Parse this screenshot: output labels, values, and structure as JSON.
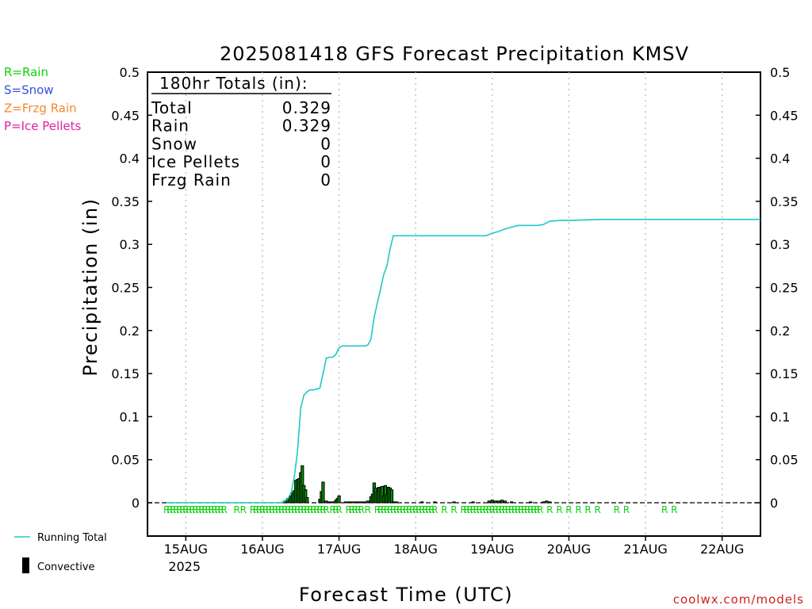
{
  "chart_data": {
    "type": "bar",
    "title": "2025081418 GFS Forecast Precipitation KMSV",
    "xlabel": "Forecast Time (UTC)",
    "ylabel": "Precipitation (in)",
    "ylim": [
      0,
      0.5
    ],
    "yticks": [
      0,
      0.05,
      0.1,
      0.15,
      0.2,
      0.25,
      0.3,
      0.35,
      0.4,
      0.45,
      0.5
    ],
    "ytick_labels": [
      "0",
      "0.05",
      "0.1",
      "0.15",
      "0.2",
      "0.25",
      "0.3",
      "0.35",
      "0.4",
      "0.45",
      "0.5"
    ],
    "x_unit": "forecast hour",
    "xlim": [
      -6,
      186
    ],
    "xticks": [
      6,
      30,
      54,
      78,
      102,
      126,
      150,
      174
    ],
    "xtick_labels": [
      "15AUG",
      "16AUG",
      "17AUG",
      "18AUG",
      "19AUG",
      "20AUG",
      "21AUG",
      "22AUG"
    ],
    "year_label": "2025",
    "grid": "vertical dotted",
    "totals_box": {
      "header": "180hr Totals (in):",
      "rows": [
        {
          "label": "Total",
          "value": "0.329"
        },
        {
          "label": "Rain",
          "value": "0.329"
        },
        {
          "label": "Snow",
          "value": "0"
        },
        {
          "label": "Ice Pellets",
          "value": "0"
        },
        {
          "label": "Frzg Rain",
          "value": "0"
        }
      ]
    },
    "series": [
      {
        "name": "Running Total",
        "kind": "line",
        "color": "#20c8c8",
        "x": [
          0,
          36,
          37,
          38,
          39,
          40,
          41,
          42,
          43,
          44,
          45,
          46,
          47,
          48,
          49,
          50,
          51,
          52,
          53,
          54,
          55,
          56,
          57,
          58,
          59,
          60,
          61,
          62,
          63,
          64,
          65,
          66,
          67,
          68,
          69,
          70,
          71,
          72,
          73,
          74,
          75,
          76,
          77,
          78,
          84,
          90,
          96,
          100,
          102,
          104,
          106,
          110,
          114,
          116,
          118,
          120,
          124,
          128,
          136,
          150,
          186
        ],
        "y": [
          0,
          0.0,
          0.002,
          0.005,
          0.012,
          0.03,
          0.06,
          0.11,
          0.125,
          0.129,
          0.131,
          0.131,
          0.132,
          0.133,
          0.15,
          0.168,
          0.169,
          0.169,
          0.172,
          0.18,
          0.182,
          0.182,
          0.182,
          0.182,
          0.182,
          0.182,
          0.182,
          0.182,
          0.183,
          0.19,
          0.215,
          0.232,
          0.248,
          0.265,
          0.275,
          0.295,
          0.31,
          0.31,
          0.31,
          0.31,
          0.31,
          0.31,
          0.31,
          0.31,
          0.31,
          0.31,
          0.31,
          0.31,
          0.313,
          0.315,
          0.318,
          0.322,
          0.322,
          0.322,
          0.323,
          0.327,
          0.328,
          0.328,
          0.329,
          0.329,
          0.329
        ]
      },
      {
        "name": "Convective",
        "kind": "bar",
        "color": "#000000",
        "x": [
          36.5,
          37,
          37.5,
          38,
          38.5,
          39,
          39.5,
          40,
          40.5,
          41,
          41.5,
          42,
          42.5,
          43,
          43.5,
          44,
          48,
          48.5,
          49,
          50,
          51,
          52,
          53,
          53.5,
          54,
          56,
          57,
          58,
          59,
          60,
          61,
          62,
          63,
          64,
          64.5,
          65,
          65.5,
          66,
          66.5,
          67,
          67.5,
          68,
          68.5,
          69,
          69.5,
          70,
          70.5,
          71,
          72,
          80,
          84,
          90,
          96,
          101,
          102,
          103,
          104,
          105,
          106,
          108,
          114,
          118,
          119,
          120
        ],
        "y": [
          0.001,
          0.002,
          0.003,
          0.005,
          0.006,
          0.008,
          0.012,
          0.014,
          0.026,
          0.027,
          0.028,
          0.035,
          0.043,
          0.02,
          0.015,
          0.006,
          0.004,
          0.013,
          0.024,
          0.002,
          0.001,
          0.001,
          0.003,
          0.005,
          0.008,
          0.001,
          0.001,
          0.001,
          0.001,
          0.001,
          0.001,
          0.001,
          0.002,
          0.007,
          0.01,
          0.023,
          0.017,
          0.013,
          0.018,
          0.017,
          0.019,
          0.008,
          0.02,
          0.01,
          0.018,
          0.017,
          0.015,
          0.001,
          0.001,
          0.001,
          0.001,
          0.001,
          0.001,
          0.002,
          0.003,
          0.002,
          0.002,
          0.003,
          0.002,
          0.001,
          0.001,
          0.001,
          0.002,
          0.001
        ]
      }
    ],
    "precip_type_markers": {
      "symbol": "R",
      "color": "#10d010",
      "x": [
        0,
        1,
        2,
        3,
        4,
        5,
        6,
        7,
        8,
        9,
        10,
        11,
        12,
        13,
        14,
        15,
        16,
        17,
        18,
        22,
        24,
        27,
        28,
        29,
        30,
        31,
        32,
        33,
        34,
        35,
        36,
        37,
        38,
        39,
        40,
        41,
        42,
        43,
        44,
        45,
        46,
        47,
        48,
        49,
        50,
        52,
        53,
        54,
        57,
        58,
        59,
        60,
        61,
        63,
        66,
        67,
        68,
        69,
        70,
        71,
        72,
        73,
        74,
        75,
        76,
        77,
        78,
        79,
        80,
        81,
        82,
        83,
        84,
        87,
        90,
        93,
        94,
        95,
        96,
        97,
        98,
        99,
        100,
        101,
        102,
        103,
        104,
        105,
        106,
        107,
        108,
        109,
        110,
        111,
        112,
        113,
        114,
        115,
        116,
        117,
        120,
        123,
        126,
        129,
        132,
        135,
        141,
        144,
        156,
        159
      ]
    },
    "legend": {
      "precip_types": [
        {
          "label": "R=Rain",
          "color": "#10d010"
        },
        {
          "label": "S=Snow",
          "color": "#3050e8"
        },
        {
          "label": "Z=Frzg Rain",
          "color": "#f08a30"
        },
        {
          "label": "P=Ice Pellets",
          "color": "#e020a0"
        }
      ],
      "running_total_label": "Running Total",
      "convective_label": "Convective"
    },
    "credit": "coolwx.com/models",
    "credit_color": "#d02020"
  }
}
